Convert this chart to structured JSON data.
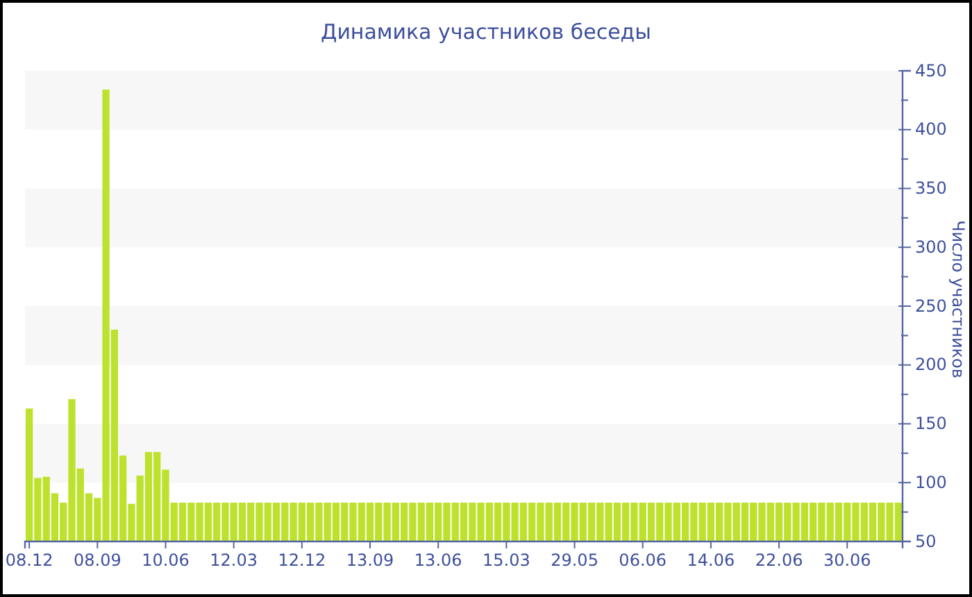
{
  "chart_data": {
    "type": "bar",
    "title": "Динамика участников беседы",
    "ylabel": "Число участников",
    "categories": [
      "08.12",
      null,
      null,
      null,
      null,
      null,
      null,
      null,
      "08.09",
      null,
      null,
      null,
      null,
      null,
      null,
      null,
      "10.06",
      null,
      null,
      null,
      null,
      null,
      null,
      null,
      "12.03",
      null,
      null,
      null,
      null,
      null,
      null,
      null,
      "12.12",
      null,
      null,
      null,
      null,
      null,
      null,
      null,
      "13.09",
      null,
      null,
      null,
      null,
      null,
      null,
      null,
      "13.06",
      null,
      null,
      null,
      null,
      null,
      null,
      null,
      "15.03",
      null,
      null,
      null,
      null,
      null,
      null,
      null,
      "29.05",
      null,
      null,
      null,
      null,
      null,
      null,
      null,
      "06.06",
      null,
      null,
      null,
      null,
      null,
      null,
      null,
      "14.06",
      null,
      null,
      null,
      null,
      null,
      null,
      null,
      "22.06",
      null,
      null,
      null,
      null,
      null,
      null,
      null,
      "30.06",
      null,
      null,
      null,
      null,
      null,
      null
    ],
    "values": [
      163,
      104,
      105,
      91,
      83,
      171,
      112,
      91,
      87,
      434,
      230,
      123,
      82,
      106,
      126,
      126,
      111,
      83,
      83,
      83,
      83,
      83,
      83,
      83,
      83,
      83,
      83,
      83,
      83,
      83,
      83,
      83,
      83,
      83,
      83,
      83,
      83,
      83,
      83,
      83,
      83,
      83,
      83,
      83,
      83,
      83,
      83,
      83,
      83,
      83,
      83,
      83,
      83,
      83,
      83,
      83,
      83,
      83,
      83,
      83,
      83,
      83,
      83,
      83,
      83,
      83,
      83,
      83,
      83,
      83,
      83,
      83,
      83,
      83,
      83,
      83,
      83,
      83,
      83,
      83,
      83,
      83,
      83,
      83,
      83,
      83,
      83,
      83,
      83,
      83,
      83,
      83,
      83,
      83,
      83,
      83,
      83,
      83,
      83,
      83,
      83,
      83,
      83
    ],
    "color": "#bde22e",
    "ylim": [
      50,
      450
    ],
    "yticks": [
      50,
      {
        "value": 75,
        "label": null
      },
      100,
      {
        "value": 125,
        "label": null
      },
      150,
      {
        "value": 175,
        "label": null
      },
      200,
      {
        "value": 225,
        "label": null
      },
      250,
      {
        "value": 275,
        "label": null
      },
      300,
      {
        "value": 325,
        "label": null
      },
      350,
      {
        "value": 375,
        "label": null
      },
      400,
      {
        "value": 425,
        "label": null
      },
      450
    ],
    "bands": [
      {
        "axis": "y",
        "from": 100,
        "to": 150,
        "color": "#f7f7f7"
      },
      {
        "axis": "y",
        "from": 200,
        "to": 250,
        "color": "#f7f7f7"
      },
      {
        "axis": "y",
        "from": 300,
        "to": 350,
        "color": "#f7f7f7"
      },
      {
        "axis": "y",
        "from": 400,
        "to": 450,
        "color": "#f7f7f7"
      }
    ]
  }
}
